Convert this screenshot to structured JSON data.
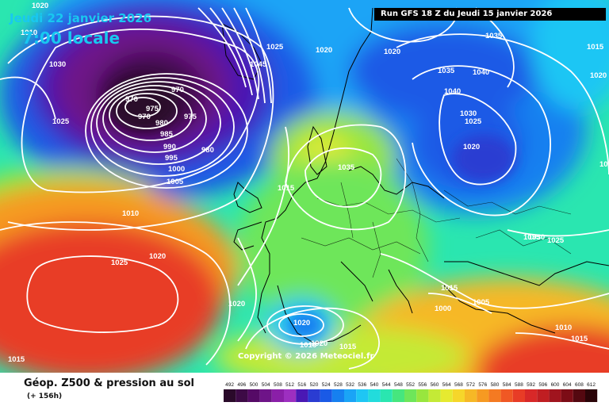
{
  "header": {
    "date": "Jeudi 22 janvier 2026",
    "time": "7:00 locale",
    "run": "Run GFS 18 Z du Jeudi 15 janvier 2026"
  },
  "footer": {
    "title": "Géop. Z500 & pression au sol",
    "subtitle": "(+ 156h)",
    "copyright": "Copyright © 2026 Meteociel.fr"
  },
  "colors": {
    "accent_text": "#18c8f0",
    "isobar": "#ffffff"
  },
  "scale": {
    "ticks": [
      "492",
      "496",
      "500",
      "504",
      "508",
      "512",
      "516",
      "520",
      "524",
      "528",
      "532",
      "536",
      "540",
      "544",
      "548",
      "552",
      "556",
      "560",
      "564",
      "568",
      "572",
      "576",
      "580",
      "584",
      "588",
      "592",
      "596",
      "600",
      "604",
      "608",
      "612"
    ],
    "colors": [
      "#2a0a2a",
      "#3d0a46",
      "#550a66",
      "#6e1488",
      "#8a1fa8",
      "#9d2fc0",
      "#4a18b4",
      "#2a3cd2",
      "#1a5ae6",
      "#1680f0",
      "#1aa4f6",
      "#1ec6f4",
      "#22dcdc",
      "#2ae6b0",
      "#46e67e",
      "#6ee65a",
      "#98e63e",
      "#c4ea36",
      "#e6ea30",
      "#f6d62a",
      "#f6b826",
      "#f69a22",
      "#f47a22",
      "#f05824",
      "#e83c26",
      "#d82828",
      "#c01e22",
      "#a0141e",
      "#7c0c16",
      "#540810",
      "#2a0408"
    ]
  },
  "isobar_labels": [
    {
      "text": "1020"
    },
    {
      "text": "1030"
    },
    {
      "text": "1025"
    },
    {
      "text": "1010"
    },
    {
      "text": "970"
    },
    {
      "text": "970"
    },
    {
      "text": "970"
    },
    {
      "text": "975"
    },
    {
      "text": "975"
    },
    {
      "text": "980"
    },
    {
      "text": "980"
    },
    {
      "text": "985"
    },
    {
      "text": "990"
    },
    {
      "text": "995"
    },
    {
      "text": "1000"
    },
    {
      "text": "1005"
    },
    {
      "text": "1010"
    },
    {
      "text": "1020"
    },
    {
      "text": "1015"
    },
    {
      "text": "1045"
    },
    {
      "text": "1025"
    },
    {
      "text": "1020"
    },
    {
      "text": "1020"
    },
    {
      "text": "1035"
    },
    {
      "text": "1040"
    },
    {
      "text": "1035"
    },
    {
      "text": "1040"
    },
    {
      "text": "1030"
    },
    {
      "text": "1025"
    },
    {
      "text": "1020"
    },
    {
      "text": "1020"
    },
    {
      "text": "1025"
    },
    {
      "text": "1035"
    },
    {
      "text": "1015"
    },
    {
      "text": "1030"
    },
    {
      "text": "1025"
    },
    {
      "text": "1025"
    },
    {
      "text": "1020"
    },
    {
      "text": "1020"
    },
    {
      "text": "1015"
    },
    {
      "text": "1015"
    },
    {
      "text": "1015"
    },
    {
      "text": "1000"
    },
    {
      "text": "1005"
    },
    {
      "text": "1010"
    },
    {
      "text": "1015"
    },
    {
      "text": "1015"
    },
    {
      "text": "1020"
    },
    {
      "text": "1035"
    }
  ]
}
